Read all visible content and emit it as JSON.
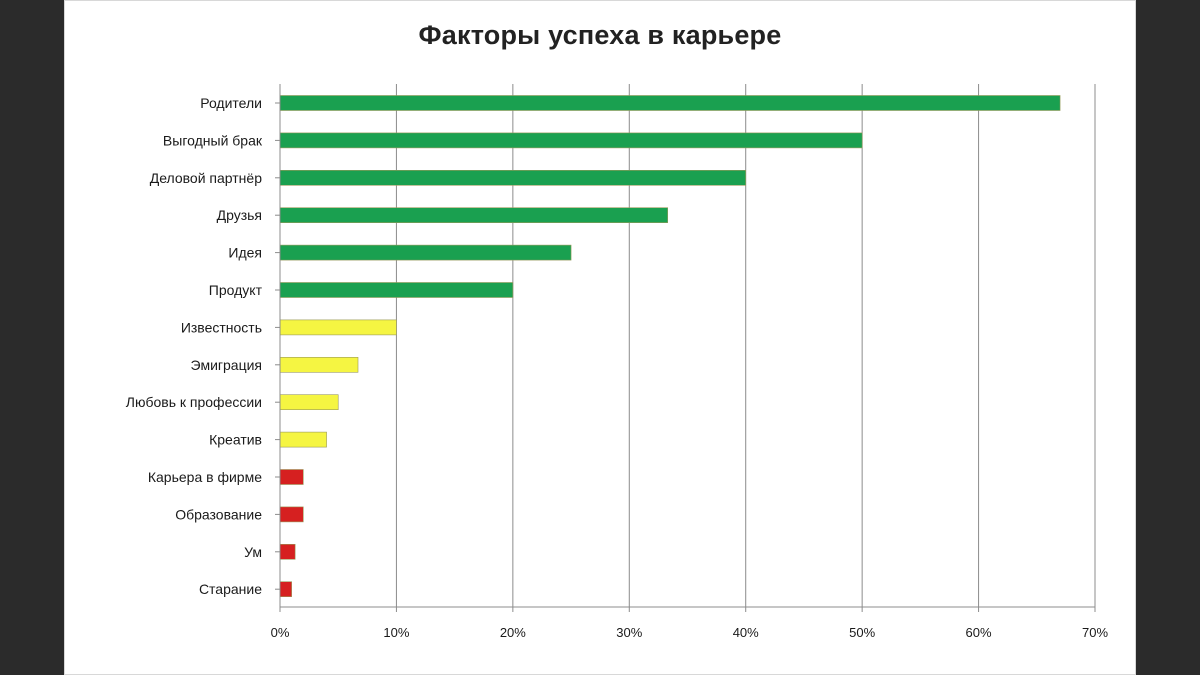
{
  "chart_data": {
    "type": "bar",
    "orientation": "horizontal",
    "title": "Факторы успеха в карьере",
    "categories": [
      "Родители",
      "Выгодный брак",
      "Деловой партнёр",
      "Друзья",
      "Идея",
      "Продукт",
      "Известность",
      "Эмиграция",
      "Любовь к профессии",
      "Креатив",
      "Карьера в фирме",
      "Образование",
      "Ум",
      "Старание"
    ],
    "values": [
      0.67,
      0.5,
      0.4,
      0.333,
      0.25,
      0.2,
      0.1,
      0.067,
      0.05,
      0.04,
      0.02,
      0.02,
      0.013,
      0.01
    ],
    "colors": [
      "#1aa050",
      "#1aa050",
      "#1aa050",
      "#1aa050",
      "#1aa050",
      "#1aa050",
      "#f5f542",
      "#f5f542",
      "#f5f542",
      "#f5f542",
      "#d62020",
      "#d62020",
      "#d62020",
      "#d62020"
    ],
    "xlim": [
      0,
      0.7
    ],
    "xticks": [
      "0%",
      "10%",
      "20%",
      "30%",
      "40%",
      "50%",
      "60%",
      "70%"
    ],
    "grid": "vertical",
    "legend": "none"
  }
}
